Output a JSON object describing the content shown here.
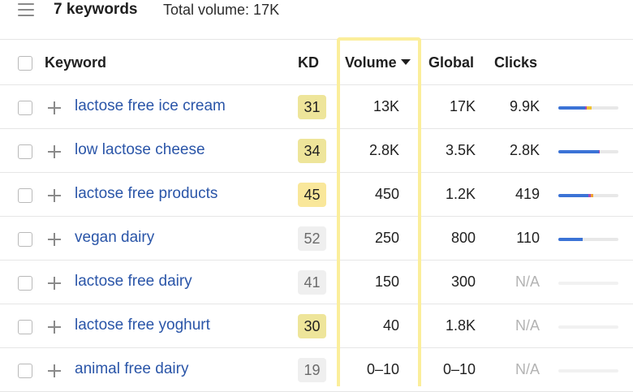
{
  "header": {
    "keyword_count": "7 keywords",
    "total_volume": "Total volume: 17K",
    "menu_icon": "hamburger-menu-icon"
  },
  "table": {
    "columns": {
      "keyword": "Keyword",
      "kd": "KD",
      "volume": "Volume",
      "global": "Global",
      "clicks": "Clicks"
    },
    "sorted_column": "volume",
    "sort_direction": "desc",
    "highlight_color": "#fbee9b",
    "rows": [
      {
        "keyword": "lactose free ice cream",
        "kd": "31",
        "kd_bg": "#eee59a",
        "kd_fg": "#1f1f1f",
        "volume": "13K",
        "global": "17K",
        "clicks": "9.9K",
        "clicks_na": false,
        "click_bar": [
          {
            "color": "#3b73d6",
            "from": 0,
            "to": 0.45
          },
          {
            "color": "#a94ab3",
            "from": 0.45,
            "to": 0.47
          },
          {
            "color": "#f1c232",
            "from": 0.47,
            "to": 0.55
          }
        ]
      },
      {
        "keyword": "low lactose cheese",
        "kd": "34",
        "kd_bg": "#eee59a",
        "kd_fg": "#1f1f1f",
        "volume": "2.8K",
        "global": "3.5K",
        "clicks": "2.8K",
        "clicks_na": false,
        "click_bar": [
          {
            "color": "#3b73d6",
            "from": 0,
            "to": 0.67
          },
          {
            "color": "#a94ab3",
            "from": 0.67,
            "to": 0.69
          }
        ]
      },
      {
        "keyword": "lactose free products",
        "kd": "45",
        "kd_bg": "#f9e79a",
        "kd_fg": "#1f1f1f",
        "volume": "450",
        "global": "1.2K",
        "clicks": "419",
        "clicks_na": false,
        "click_bar": [
          {
            "color": "#3b73d6",
            "from": 0,
            "to": 0.5
          },
          {
            "color": "#a94ab3",
            "from": 0.5,
            "to": 0.54
          },
          {
            "color": "#f1a232",
            "from": 0.54,
            "to": 0.58
          }
        ]
      },
      {
        "keyword": "vegan dairy",
        "kd": "52",
        "kd_bg": "#efefef",
        "kd_fg": "#6b6b6b",
        "volume": "250",
        "global": "800",
        "clicks": "110",
        "clicks_na": false,
        "click_bar": [
          {
            "color": "#3b73d6",
            "from": 0,
            "to": 0.4
          }
        ]
      },
      {
        "keyword": "lactose free dairy",
        "kd": "41",
        "kd_bg": "#efefef",
        "kd_fg": "#6b6b6b",
        "volume": "150",
        "global": "300",
        "clicks": "N/A",
        "clicks_na": true,
        "click_bar": []
      },
      {
        "keyword": "lactose free yoghurt",
        "kd": "30",
        "kd_bg": "#eee59a",
        "kd_fg": "#1f1f1f",
        "volume": "40",
        "global": "1.8K",
        "clicks": "N/A",
        "clicks_na": true,
        "click_bar": []
      },
      {
        "keyword": "animal free dairy",
        "kd": "19",
        "kd_bg": "#efefef",
        "kd_fg": "#6b6b6b",
        "volume": "0–10",
        "global": "0–10",
        "clicks": "N/A",
        "clicks_na": true,
        "click_bar": []
      }
    ]
  }
}
